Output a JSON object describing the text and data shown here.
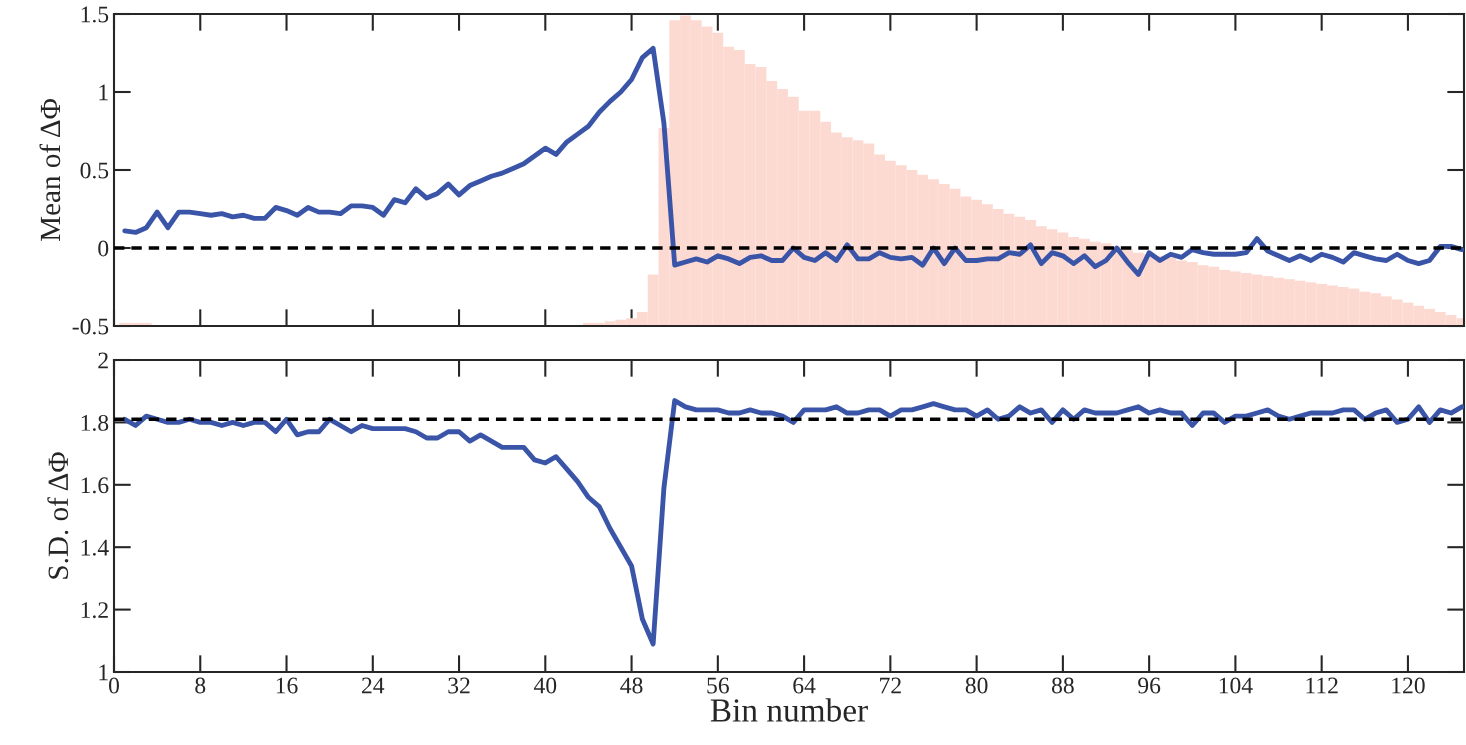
{
  "chart_data": [
    {
      "type": "line",
      "ylabel": "Mean of ΔΦ",
      "xlim": [
        0,
        125.2
      ],
      "xticks": [
        0,
        8,
        16,
        24,
        32,
        40,
        48,
        56,
        64,
        72,
        80,
        88,
        96,
        104,
        112,
        120
      ],
      "ylim": [
        -0.5,
        1.5
      ],
      "yticks": [
        -0.5,
        0,
        0.5,
        1,
        1.5
      ],
      "tick_labels": "y",
      "grid": false,
      "legend": false,
      "ref_lines": [
        {
          "axis": "y",
          "value": 0,
          "color": "#000000",
          "line_style": "dashed"
        }
      ],
      "series": [
        {
          "type": "bar",
          "color": "#fcdad2",
          "x": [
            1,
            2,
            3,
            44,
            45,
            46,
            47,
            48,
            49,
            50,
            51,
            52,
            53,
            54,
            55,
            56,
            57,
            58,
            59,
            60,
            61,
            62,
            63,
            64,
            65,
            66,
            67,
            68,
            69,
            70,
            71,
            72,
            73,
            74,
            75,
            76,
            77,
            78,
            79,
            80,
            81,
            82,
            83,
            84,
            85,
            86,
            87,
            88,
            89,
            90,
            91,
            92,
            93,
            94,
            95,
            96,
            97,
            98,
            99,
            100,
            101,
            102,
            103,
            104,
            105,
            106,
            107,
            108,
            109,
            110,
            111,
            112,
            113,
            114,
            115,
            116,
            117,
            118,
            119,
            120,
            121,
            122,
            123,
            124,
            125
          ],
          "base": [
            -0.5,
            -0.5,
            -0.5,
            -0.5,
            -0.5,
            -0.5,
            -0.5,
            -0.5,
            -0.5,
            -0.5,
            -0.5,
            -0.5,
            -0.5,
            -0.5,
            -0.5,
            -0.5,
            -0.5,
            -0.5,
            -0.5,
            -0.5,
            -0.5,
            -0.5,
            -0.5,
            -0.5,
            -0.5,
            -0.5,
            -0.5,
            -0.5,
            -0.5,
            -0.5,
            -0.5,
            -0.5,
            -0.5,
            -0.5,
            -0.5,
            -0.5,
            -0.5,
            -0.5,
            -0.5,
            -0.5,
            -0.5,
            -0.5,
            -0.5,
            -0.5,
            -0.5,
            -0.5,
            -0.5,
            -0.5,
            -0.5,
            -0.5,
            -0.5,
            -0.5,
            -0.5,
            -0.5,
            -0.5,
            -0.5,
            -0.5,
            -0.5,
            -0.5,
            -0.5,
            -0.5,
            -0.5,
            -0.5,
            -0.5,
            -0.5,
            -0.5,
            -0.5,
            -0.5,
            -0.5,
            -0.5,
            -0.5,
            -0.5,
            -0.5,
            -0.5,
            -0.5,
            -0.5,
            -0.5,
            -0.5,
            -0.5,
            -0.5,
            -0.5,
            -0.5,
            -0.5,
            -0.5,
            -0.5
          ],
          "values": [
            0.02,
            0.02,
            0.02,
            0.02,
            0.02,
            0.03,
            0.04,
            0.05,
            0.09,
            0.33,
            1.27,
            1.96,
            1.99,
            1.96,
            1.92,
            1.88,
            1.79,
            1.77,
            1.68,
            1.66,
            1.57,
            1.52,
            1.47,
            1.38,
            1.38,
            1.31,
            1.24,
            1.21,
            1.19,
            1.17,
            1.1,
            1.06,
            1.03,
            1.0,
            0.97,
            0.94,
            0.91,
            0.88,
            0.83,
            0.81,
            0.78,
            0.75,
            0.72,
            0.7,
            0.68,
            0.64,
            0.62,
            0.6,
            0.57,
            0.56,
            0.54,
            0.53,
            0.51,
            0.49,
            0.47,
            0.46,
            0.45,
            0.44,
            0.42,
            0.41,
            0.39,
            0.38,
            0.36,
            0.35,
            0.34,
            0.33,
            0.32,
            0.31,
            0.3,
            0.29,
            0.28,
            0.27,
            0.26,
            0.25,
            0.24,
            0.22,
            0.21,
            0.19,
            0.17,
            0.15,
            0.13,
            0.11,
            0.09,
            0.07,
            0.05
          ]
        },
        {
          "color": "#3a55a8",
          "x": [
            1,
            2,
            3,
            4,
            5,
            6,
            7,
            8,
            9,
            10,
            11,
            12,
            13,
            14,
            15,
            16,
            17,
            18,
            19,
            20,
            21,
            22,
            23,
            24,
            25,
            26,
            27,
            28,
            29,
            30,
            31,
            32,
            33,
            34,
            35,
            36,
            37,
            38,
            39,
            40,
            41,
            42,
            43,
            44,
            45,
            46,
            47,
            48,
            49,
            50,
            51,
            52,
            53,
            54,
            55,
            56,
            57,
            58,
            59,
            60,
            61,
            62,
            63,
            64,
            65,
            66,
            67,
            68,
            69,
            70,
            71,
            72,
            73,
            74,
            75,
            76,
            77,
            78,
            79,
            80,
            81,
            82,
            83,
            84,
            85,
            86,
            87,
            88,
            89,
            90,
            91,
            92,
            93,
            94,
            95,
            96,
            97,
            98,
            99,
            100,
            101,
            102,
            103,
            104,
            105,
            106,
            107,
            108,
            109,
            110,
            111,
            112,
            113,
            114,
            115,
            116,
            117,
            118,
            119,
            120,
            121,
            122,
            123,
            124,
            125
          ],
          "values": [
            0.11,
            0.1,
            0.13,
            0.23,
            0.13,
            0.23,
            0.23,
            0.22,
            0.21,
            0.22,
            0.2,
            0.21,
            0.19,
            0.19,
            0.26,
            0.24,
            0.21,
            0.26,
            0.23,
            0.23,
            0.22,
            0.27,
            0.27,
            0.26,
            0.21,
            0.31,
            0.29,
            0.38,
            0.32,
            0.35,
            0.41,
            0.34,
            0.4,
            0.43,
            0.46,
            0.48,
            0.51,
            0.54,
            0.59,
            0.64,
            0.6,
            0.68,
            0.73,
            0.78,
            0.87,
            0.94,
            1.0,
            1.08,
            1.22,
            1.28,
            0.8,
            -0.11,
            -0.09,
            -0.07,
            -0.09,
            -0.05,
            -0.07,
            -0.1,
            -0.06,
            -0.05,
            -0.08,
            -0.08,
            0.0,
            -0.06,
            -0.08,
            -0.03,
            -0.08,
            0.02,
            -0.07,
            -0.07,
            -0.03,
            -0.06,
            -0.07,
            -0.06,
            -0.11,
            0.0,
            -0.1,
            0.0,
            -0.08,
            -0.08,
            -0.07,
            -0.07,
            -0.03,
            -0.04,
            0.02,
            -0.1,
            -0.03,
            -0.05,
            -0.1,
            -0.05,
            -0.12,
            -0.08,
            0.0,
            -0.09,
            -0.17,
            -0.03,
            -0.08,
            -0.04,
            -0.06,
            -0.01,
            -0.03,
            -0.04,
            -0.04,
            -0.04,
            -0.03,
            0.06,
            -0.02,
            -0.05,
            -0.08,
            -0.05,
            -0.08,
            -0.04,
            -0.06,
            -0.09,
            -0.03,
            -0.05,
            -0.07,
            -0.08,
            -0.04,
            -0.08,
            -0.1,
            -0.08,
            0.01,
            0.01,
            -0.01
          ]
        }
      ]
    },
    {
      "type": "line",
      "ylabel": "S.D. of ΔΦ",
      "xlabel": "Bin number",
      "xlim": [
        0,
        125.2
      ],
      "xticks": [
        0,
        8,
        16,
        24,
        32,
        40,
        48,
        56,
        64,
        72,
        80,
        88,
        96,
        104,
        112,
        120
      ],
      "ylim": [
        1,
        2
      ],
      "yticks": [
        1,
        1.2,
        1.4,
        1.6,
        1.8,
        2
      ],
      "grid": false,
      "legend": false,
      "ref_lines": [
        {
          "axis": "y",
          "value": 1.81,
          "color": "#000000",
          "line_style": "dashed"
        }
      ],
      "series": [
        {
          "color": "#3a55a8",
          "x": [
            1,
            2,
            3,
            4,
            5,
            6,
            7,
            8,
            9,
            10,
            11,
            12,
            13,
            14,
            15,
            16,
            17,
            18,
            19,
            20,
            21,
            22,
            23,
            24,
            25,
            26,
            27,
            28,
            29,
            30,
            31,
            32,
            33,
            34,
            35,
            36,
            37,
            38,
            39,
            40,
            41,
            42,
            43,
            44,
            45,
            46,
            47,
            48,
            49,
            50,
            51,
            52,
            53,
            54,
            55,
            56,
            57,
            58,
            59,
            60,
            61,
            62,
            63,
            64,
            65,
            66,
            67,
            68,
            69,
            70,
            71,
            72,
            73,
            74,
            75,
            76,
            77,
            78,
            79,
            80,
            81,
            82,
            83,
            84,
            85,
            86,
            87,
            88,
            89,
            90,
            91,
            92,
            93,
            94,
            95,
            96,
            97,
            98,
            99,
            100,
            101,
            102,
            103,
            104,
            105,
            106,
            107,
            108,
            109,
            110,
            111,
            112,
            113,
            114,
            115,
            116,
            117,
            118,
            119,
            120,
            121,
            122,
            123,
            124,
            125
          ],
          "values": [
            1.81,
            1.79,
            1.82,
            1.81,
            1.8,
            1.8,
            1.81,
            1.8,
            1.8,
            1.79,
            1.8,
            1.79,
            1.8,
            1.8,
            1.77,
            1.81,
            1.76,
            1.77,
            1.77,
            1.81,
            1.79,
            1.77,
            1.79,
            1.78,
            1.78,
            1.78,
            1.78,
            1.77,
            1.75,
            1.75,
            1.77,
            1.77,
            1.74,
            1.76,
            1.74,
            1.72,
            1.72,
            1.72,
            1.68,
            1.67,
            1.69,
            1.65,
            1.61,
            1.56,
            1.53,
            1.46,
            1.4,
            1.34,
            1.17,
            1.09,
            1.59,
            1.87,
            1.85,
            1.84,
            1.84,
            1.84,
            1.83,
            1.83,
            1.84,
            1.83,
            1.83,
            1.82,
            1.8,
            1.84,
            1.84,
            1.84,
            1.85,
            1.83,
            1.83,
            1.84,
            1.84,
            1.82,
            1.84,
            1.84,
            1.85,
            1.86,
            1.85,
            1.84,
            1.84,
            1.82,
            1.84,
            1.81,
            1.82,
            1.85,
            1.83,
            1.84,
            1.8,
            1.84,
            1.81,
            1.84,
            1.83,
            1.83,
            1.83,
            1.84,
            1.85,
            1.83,
            1.84,
            1.83,
            1.83,
            1.79,
            1.83,
            1.83,
            1.8,
            1.82,
            1.82,
            1.83,
            1.84,
            1.82,
            1.81,
            1.82,
            1.83,
            1.83,
            1.83,
            1.84,
            1.84,
            1.81,
            1.83,
            1.84,
            1.8,
            1.81,
            1.85,
            1.8,
            1.84,
            1.83,
            1.85
          ]
        }
      ]
    }
  ]
}
